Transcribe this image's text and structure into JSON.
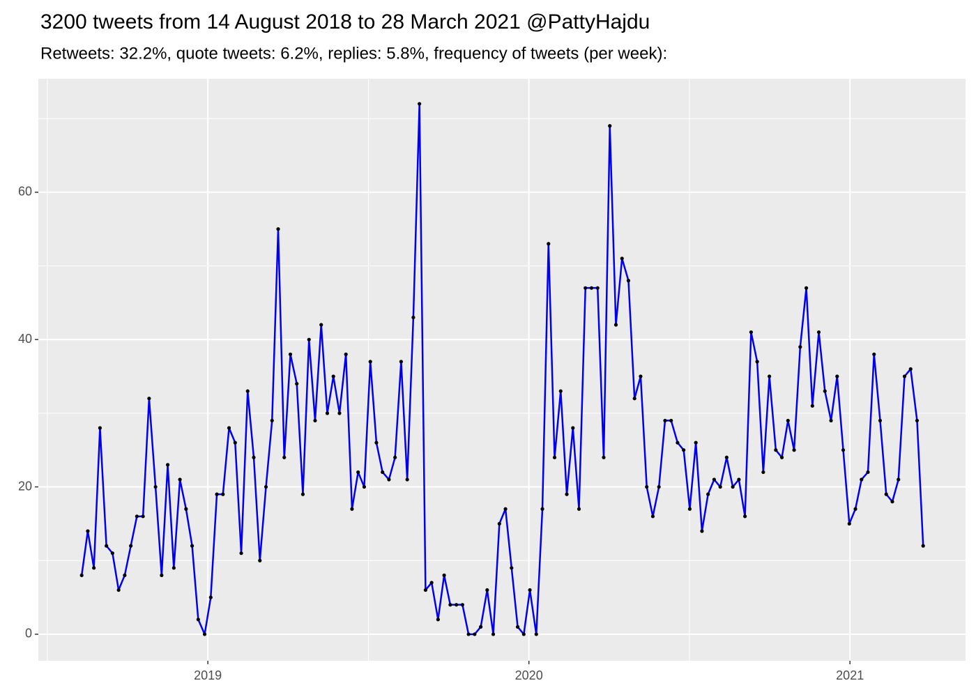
{
  "chart_data": {
    "type": "line",
    "title": "3200 tweets from 14 August 2018 to 28 March 2021 @PattyHajdu",
    "subtitle": "Retweets: 32.2%, quote tweets: 6.2%, replies: 5.8%, frequency of tweets (per week):",
    "x": [
      2018.607,
      2018.626,
      2018.645,
      2018.664,
      2018.684,
      2018.703,
      2018.722,
      2018.741,
      2018.76,
      2018.779,
      2018.798,
      2018.817,
      2018.837,
      2018.856,
      2018.875,
      2018.894,
      2018.913,
      2018.932,
      2018.951,
      2018.97,
      2018.99,
      2019.009,
      2019.028,
      2019.047,
      2019.066,
      2019.085,
      2019.104,
      2019.124,
      2019.143,
      2019.162,
      2019.181,
      2019.2,
      2019.219,
      2019.238,
      2019.257,
      2019.277,
      2019.296,
      2019.315,
      2019.334,
      2019.353,
      2019.372,
      2019.391,
      2019.41,
      2019.43,
      2019.449,
      2019.468,
      2019.487,
      2019.506,
      2019.525,
      2019.544,
      2019.564,
      2019.583,
      2019.602,
      2019.621,
      2019.64,
      2019.659,
      2019.678,
      2019.697,
      2019.717,
      2019.736,
      2019.755,
      2019.774,
      2019.793,
      2019.812,
      2019.831,
      2019.85,
      2019.87,
      2019.889,
      2019.908,
      2019.927,
      2019.946,
      2019.965,
      2019.984,
      2020.003,
      2020.023,
      2020.042,
      2020.061,
      2020.08,
      2020.099,
      2020.118,
      2020.137,
      2020.156,
      2020.176,
      2020.195,
      2020.214,
      2020.233,
      2020.252,
      2020.271,
      2020.29,
      2020.31,
      2020.329,
      2020.348,
      2020.367,
      2020.386,
      2020.405,
      2020.424,
      2020.443,
      2020.463,
      2020.482,
      2020.501,
      2020.52,
      2020.539,
      2020.558,
      2020.577,
      2020.596,
      2020.616,
      2020.635,
      2020.654,
      2020.673,
      2020.692,
      2020.711,
      2020.73,
      2020.749,
      2020.769,
      2020.788,
      2020.807,
      2020.826,
      2020.845,
      2020.864,
      2020.883,
      2020.903,
      2020.922,
      2020.941,
      2020.96,
      2020.979,
      2020.998,
      2021.017,
      2021.036,
      2021.056,
      2021.075,
      2021.094,
      2021.113,
      2021.132,
      2021.151,
      2021.17,
      2021.189,
      2021.209,
      2021.228
    ],
    "values": [
      8,
      14,
      9,
      28,
      12,
      11,
      6,
      8,
      12,
      16,
      16,
      32,
      20,
      8,
      23,
      9,
      21,
      17,
      12,
      2,
      0,
      5,
      19,
      19,
      28,
      26,
      11,
      33,
      24,
      10,
      20,
      29,
      55,
      24,
      38,
      34,
      19,
      40,
      29,
      42,
      30,
      35,
      30,
      38,
      17,
      22,
      20,
      37,
      26,
      22,
      21,
      24,
      37,
      21,
      43,
      72,
      6,
      7,
      2,
      8,
      4,
      4,
      4,
      0,
      0,
      1,
      6,
      0,
      15,
      17,
      9,
      1,
      0,
      6,
      0,
      17,
      53,
      24,
      33,
      19,
      28,
      17,
      47,
      47,
      47,
      24,
      69,
      42,
      51,
      48,
      32,
      35,
      20,
      16,
      20,
      29,
      29,
      26,
      25,
      17,
      26,
      14,
      19,
      21,
      20,
      24,
      20,
      21,
      16,
      41,
      37,
      22,
      35,
      25,
      24,
      29,
      25,
      39,
      47,
      31,
      41,
      33,
      29,
      35,
      25,
      15,
      17,
      21,
      22,
      38,
      29,
      19,
      18,
      21,
      35,
      36,
      29,
      12
    ],
    "color": "#0000ee",
    "point_color": "#000000",
    "xlim": [
      2018.472,
      2021.36
    ],
    "xticks": [
      2019,
      2020,
      2021
    ],
    "ylim": [
      -3.6,
      75.4
    ],
    "yticks": [
      0,
      20,
      40,
      60
    ],
    "grid": true
  }
}
